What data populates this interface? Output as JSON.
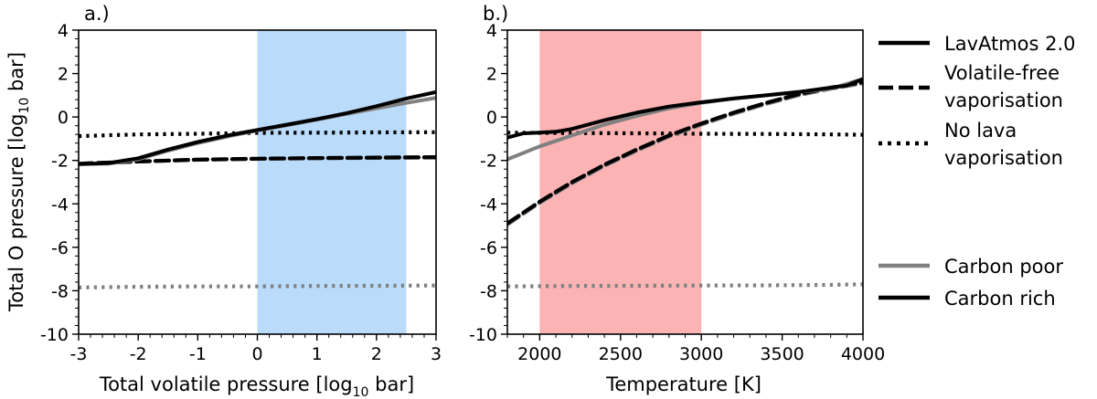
{
  "figure": {
    "legend": {
      "entries": [
        {
          "label_lines": [
            "LavAtmos 2.0"
          ],
          "style": "solid",
          "color": "#000000"
        },
        {
          "label_lines": [
            "Volatile-free",
            "vaporisation"
          ],
          "style": "dashed",
          "color": "#000000"
        },
        {
          "label_lines": [
            "No lava",
            "vaporisation"
          ],
          "style": "dotted",
          "color": "#000000"
        },
        {
          "label_lines": [
            "Carbon poor"
          ],
          "style": "solid",
          "color": "#808080"
        },
        {
          "label_lines": [
            "Carbon rich"
          ],
          "style": "solid",
          "color": "#000000"
        }
      ]
    }
  },
  "chart_data": [
    {
      "type": "line",
      "panel_label": "a.)",
      "xlabel_main": "Total volatile pressure [log",
      "xlabel_sub": "10",
      "xlabel_end": " bar]",
      "ylabel_main": "Total O pressure [log",
      "ylabel_sub": "10",
      "ylabel_end": " bar]",
      "xlim": [
        -3,
        3
      ],
      "ylim": [
        -10,
        4
      ],
      "xticks": [
        -3,
        -2,
        -1,
        0,
        1,
        2,
        3
      ],
      "yticks": [
        -10,
        -8,
        -6,
        -4,
        -2,
        0,
        2,
        4
      ],
      "shaded_region": {
        "x": [
          0,
          2.5
        ],
        "color": "#badbfa"
      },
      "series": [
        {
          "variant": "Carbon poor",
          "style": "dotted",
          "x": [
            -3,
            -2,
            -1,
            0,
            1,
            2,
            3
          ],
          "y": [
            -7.85,
            -7.82,
            -7.8,
            -7.8,
            -7.78,
            -7.77,
            -7.76
          ]
        },
        {
          "variant": "Carbon rich",
          "style": "dotted",
          "x": [
            -3,
            -2,
            -1,
            0,
            1,
            2,
            3
          ],
          "y": [
            -0.88,
            -0.8,
            -0.77,
            -0.73,
            -0.72,
            -0.71,
            -0.7
          ]
        },
        {
          "variant": "Carbon poor",
          "style": "dashed",
          "x": [
            -3,
            -2,
            -1,
            0,
            1,
            2,
            3
          ],
          "y": [
            -2.15,
            -2.05,
            -1.97,
            -1.93,
            -1.9,
            -1.88,
            -1.87
          ]
        },
        {
          "variant": "Carbon rich",
          "style": "dashed",
          "x": [
            -3,
            -2,
            -1,
            0,
            1,
            2,
            3
          ],
          "y": [
            -2.15,
            -2.05,
            -1.96,
            -1.92,
            -1.89,
            -1.87,
            -1.85
          ]
        },
        {
          "variant": "Carbon poor",
          "style": "solid",
          "x": [
            -3,
            -2.5,
            -2,
            -1.5,
            -1,
            -0.5,
            0,
            0.5,
            1,
            1.5,
            2,
            2.5,
            3
          ],
          "y": [
            -2.17,
            -2.15,
            -1.95,
            -1.55,
            -1.2,
            -0.9,
            -0.62,
            -0.38,
            -0.12,
            0.14,
            0.4,
            0.65,
            0.88
          ]
        },
        {
          "variant": "Carbon rich",
          "style": "solid",
          "x": [
            -3,
            -2.5,
            -2,
            -1.5,
            -1,
            -0.5,
            0,
            0.5,
            1,
            1.5,
            2,
            2.5,
            3
          ],
          "y": [
            -2.17,
            -2.12,
            -1.9,
            -1.5,
            -1.15,
            -0.85,
            -0.6,
            -0.35,
            -0.1,
            0.18,
            0.5,
            0.85,
            1.15
          ]
        }
      ]
    },
    {
      "type": "line",
      "panel_label": "b.)",
      "xlabel_main": "Temperature [K]",
      "xlim": [
        1800,
        4000
      ],
      "ylim": [
        -10,
        4
      ],
      "xticks": [
        2000,
        2500,
        3000,
        3500,
        4000
      ],
      "yticks": [
        -10,
        -8,
        -6,
        -4,
        -2,
        0,
        2,
        4
      ],
      "shaded_region": {
        "x": [
          2000,
          3000
        ],
        "color": "#fbb3b4"
      },
      "series": [
        {
          "variant": "Carbon poor",
          "style": "dotted",
          "x": [
            1800,
            2200,
            2600,
            3000,
            3400,
            3800,
            4000
          ],
          "y": [
            -7.8,
            -7.78,
            -7.77,
            -7.76,
            -7.75,
            -7.73,
            -7.7
          ]
        },
        {
          "variant": "Carbon rich",
          "style": "dotted",
          "x": [
            1800,
            2200,
            2600,
            3000,
            3400,
            3800,
            4000
          ],
          "y": [
            -0.72,
            -0.74,
            -0.75,
            -0.77,
            -0.78,
            -0.8,
            -0.82
          ]
        },
        {
          "variant": "Carbon poor",
          "style": "dashed",
          "x": [
            1800,
            2000,
            2200,
            2400,
            2600,
            2800,
            3000,
            3200,
            3400,
            3600,
            3800,
            4000
          ],
          "y": [
            -4.95,
            -3.95,
            -3.05,
            -2.25,
            -1.55,
            -0.9,
            -0.35,
            0.15,
            0.6,
            1.0,
            1.3,
            1.55
          ]
        },
        {
          "variant": "Carbon rich",
          "style": "dashed",
          "x": [
            1800,
            2000,
            2200,
            2400,
            2600,
            2800,
            3000,
            3200,
            3400,
            3600,
            3800,
            4000
          ],
          "y": [
            -4.9,
            -3.9,
            -3.0,
            -2.2,
            -1.5,
            -0.85,
            -0.3,
            0.2,
            0.65,
            1.05,
            1.35,
            1.6
          ]
        },
        {
          "variant": "Carbon poor",
          "style": "solid",
          "x": [
            1800,
            2000,
            2200,
            2400,
            2600,
            2800,
            3000,
            3200,
            3400,
            3600,
            3800,
            4000
          ],
          "y": [
            -1.95,
            -1.35,
            -0.85,
            -0.35,
            0.05,
            0.4,
            0.65,
            0.85,
            1.0,
            1.15,
            1.3,
            1.75
          ]
        },
        {
          "variant": "Carbon rich",
          "style": "solid",
          "x": [
            1800,
            1900,
            2000,
            2100,
            2200,
            2400,
            2600,
            2800,
            3000,
            3200,
            3400,
            3600,
            3800,
            3900,
            4000
          ],
          "y": [
            -0.95,
            -0.75,
            -0.72,
            -0.68,
            -0.55,
            -0.15,
            0.2,
            0.48,
            0.68,
            0.85,
            1.0,
            1.15,
            1.35,
            1.45,
            1.75
          ]
        }
      ]
    }
  ]
}
